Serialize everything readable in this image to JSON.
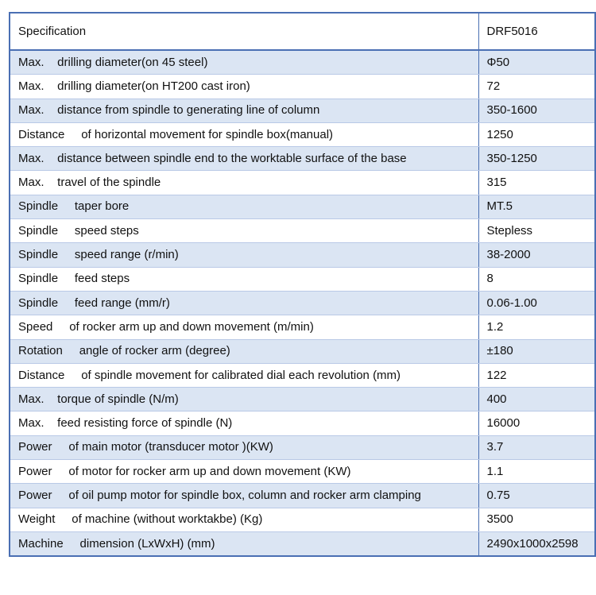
{
  "table": {
    "header": {
      "col1": "Specification",
      "col2": "DRF5016"
    },
    "rows": [
      {
        "spec": "Max.    drilling diameter(on 45 steel)",
        "value": "Φ50"
      },
      {
        "spec": "Max.    drilling diameter(on HT200 cast iron)",
        "value": "72"
      },
      {
        "spec": "Max.    distance from spindle to generating line of column",
        "value": "350-1600"
      },
      {
        "spec": "Distance     of horizontal movement for spindle box(manual)",
        "value": "1250"
      },
      {
        "spec": "Max.    distance between spindle end to the worktable surface of the base",
        "value": "350-1250"
      },
      {
        "spec": "Max.    travel of the spindle",
        "value": "315"
      },
      {
        "spec": "Spindle     taper bore",
        "value": "MT.5"
      },
      {
        "spec": "Spindle     speed steps",
        "value": "Stepless"
      },
      {
        "spec": "Spindle     speed range (r/min)",
        "value": "38-2000"
      },
      {
        "spec": "Spindle     feed steps",
        "value": "8"
      },
      {
        "spec": "Spindle     feed range (mm/r)",
        "value": "0.06-1.00"
      },
      {
        "spec": "Speed     of rocker arm up and down movement (m/min)",
        "value": "1.2"
      },
      {
        "spec": "Rotation     angle of rocker arm (degree)",
        "value": "±180"
      },
      {
        "spec": "Distance     of spindle movement for calibrated dial each revolution (mm)",
        "value": "122"
      },
      {
        "spec": "Max.    torque of spindle (N/m)",
        "value": "400"
      },
      {
        "spec": "Max.    feed resisting force of spindle (N)",
        "value": "16000"
      },
      {
        "spec": "Power     of main motor (transducer motor )(KW)",
        "value": "3.7"
      },
      {
        "spec": "Power     of motor for rocker arm up and down movement (KW)",
        "value": "1.1"
      },
      {
        "spec": "Power     of oil pump motor for spindle box, column and rocker arm clamping",
        "value": "0.75"
      },
      {
        "spec": "Weight     of machine (without worktakbe) (Kg)",
        "value": "3500"
      },
      {
        "spec": "Machine     dimension (LxWxH) (mm)",
        "value": "2490x1000x2598"
      }
    ]
  },
  "colors": {
    "border": "#4a6fb3",
    "shaded_row": "#dbe5f3",
    "plain_row": "#ffffff"
  }
}
